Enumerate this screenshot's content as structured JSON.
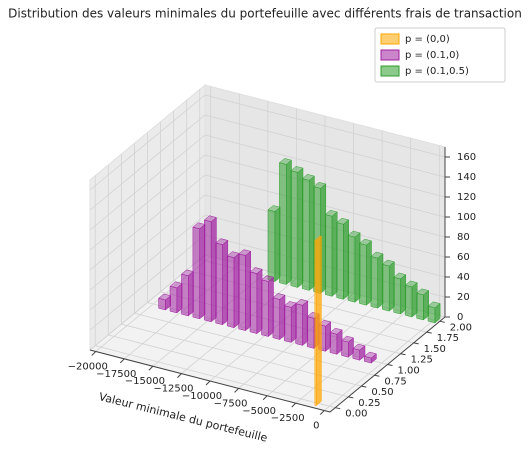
{
  "chart_data": {
    "type": "bar3d",
    "title": "Distribution des valeurs minimales du portefeuille avec différents frais de transaction",
    "x_label": "Valeur minimale du portefeuille",
    "legend": "upper right",
    "series": [
      {
        "name": "p = (0,0)",
        "color": "#ffa500",
        "y": 0,
        "x": [
          -1000
        ],
        "values": [
          165
        ]
      },
      {
        "name": "p = (0.1,0)",
        "color": "#a020a0",
        "y": 1,
        "x": [
          -19000,
          -18000,
          -17000,
          -16000,
          -15000,
          -14000,
          -13000,
          -12000,
          -11000,
          -10000,
          -9000,
          -8000,
          -7000,
          -6000,
          -5000,
          -4000,
          -3000,
          -2000,
          -1000
        ],
        "values": [
          10,
          25,
          40,
          90,
          100,
          80,
          70,
          75,
          60,
          55,
          40,
          35,
          40,
          30,
          25,
          20,
          15,
          10,
          5
        ]
      },
      {
        "name": "p = (0.1,0.5)",
        "color": "#2e9e2e",
        "y": 2,
        "x": [
          -14000,
          -13000,
          -12000,
          -11000,
          -10000,
          -9000,
          -8000,
          -7000,
          -6000,
          -5000,
          -4000,
          -3000,
          -2000,
          -1000,
          0
        ],
        "values": [
          70,
          120,
          115,
          110,
          105,
          80,
          75,
          65,
          60,
          50,
          45,
          35,
          30,
          25,
          15
        ]
      }
    ],
    "xlim": [
      -20500,
      500
    ],
    "ylim": [
      -0.1,
      2.1
    ],
    "zlim": [
      0,
      170
    ],
    "xticks": [
      {
        "value": -20000,
        "label": "−20000"
      },
      {
        "value": -17500,
        "label": "−17500"
      },
      {
        "value": -15000,
        "label": "−15000"
      },
      {
        "value": -12500,
        "label": "−12500"
      },
      {
        "value": -10000,
        "label": "−10000"
      },
      {
        "value": -7500,
        "label": "−7500"
      },
      {
        "value": -5000,
        "label": "−5000"
      },
      {
        "value": -2500,
        "label": "−2500"
      },
      0
    ],
    "yticks": [
      {
        "value": 0,
        "label": "0.00"
      },
      {
        "value": 0.25,
        "label": "0.25"
      },
      {
        "value": 0.5,
        "label": "0.50"
      },
      {
        "value": 0.75,
        "label": "0.75"
      },
      {
        "value": 1,
        "label": "1.00"
      },
      {
        "value": 1.25,
        "label": "1.25"
      },
      {
        "value": 1.5,
        "label": "1.50"
      },
      {
        "value": 1.75,
        "label": "1.75"
      },
      {
        "value": 2,
        "label": "2.00"
      }
    ],
    "zticks": [
      0,
      20,
      40,
      60,
      80,
      100,
      120,
      140,
      160
    ],
    "grid": true
  }
}
